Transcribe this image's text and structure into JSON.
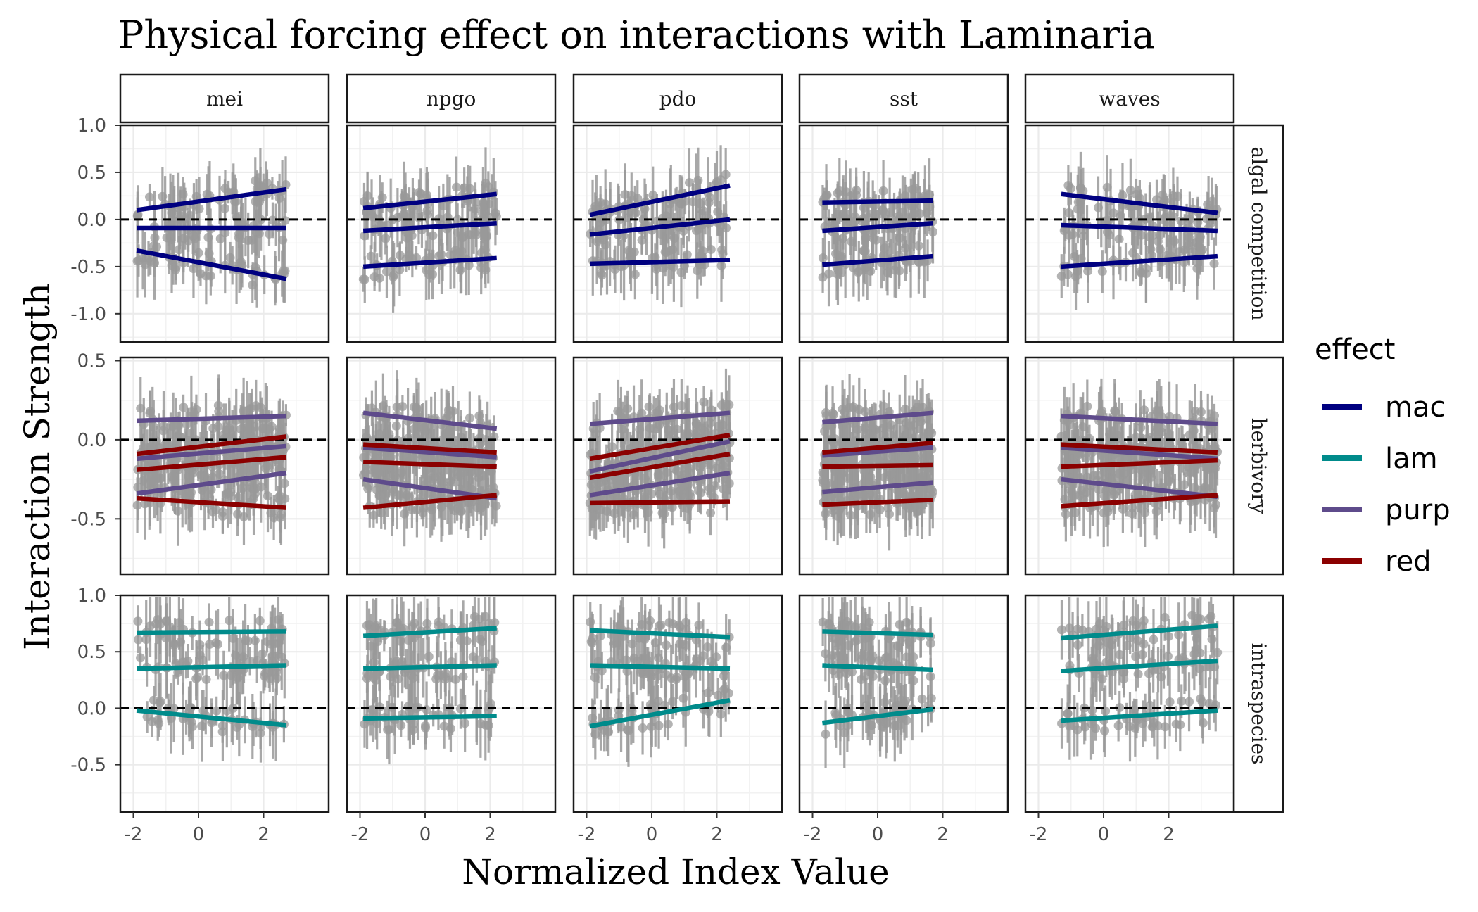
{
  "chart_data": {
    "type": "line",
    "title": "Physical forcing effect on interactions with Laminaria",
    "xlabel": "Normalized Index Value",
    "ylabel": "Interaction Strength",
    "columns": [
      "mei",
      "npgo",
      "pdo",
      "sst",
      "waves"
    ],
    "rows": [
      "algal competition",
      "herbivory",
      "intraspecies"
    ],
    "xlim": [
      -2.4,
      4.0
    ],
    "x_ticks": [
      -2,
      0,
      2
    ],
    "x_tick_labels": [
      "-2",
      "0",
      "2"
    ],
    "x_range_by_column": {
      "mei": [
        -1.9,
        2.7
      ],
      "npgo": [
        -1.9,
        2.2
      ],
      "pdo": [
        -1.9,
        2.4
      ],
      "sst": [
        -1.7,
        1.7
      ],
      "waves": [
        -1.3,
        3.5
      ]
    },
    "row_scales": [
      {
        "ylim": [
          -1.3,
          1.0
        ],
        "ticks": [
          1.0,
          0.5,
          0.0,
          -0.5,
          -1.0
        ],
        "tick_labels": [
          "1.0",
          "0.5",
          "0.0",
          "-0.5",
          "-1.0"
        ]
      },
      {
        "ylim": [
          -0.85,
          0.52
        ],
        "ticks": [
          0.5,
          0.0,
          -0.5
        ],
        "tick_labels": [
          "0.5",
          "0.0",
          "-0.5"
        ]
      },
      {
        "ylim": [
          -0.92,
          1.0
        ],
        "ticks": [
          1.0,
          0.5,
          0.0,
          -0.5
        ],
        "tick_labels": [
          "1.0",
          "0.5",
          "0.0",
          "-0.5"
        ]
      }
    ],
    "reference_line_y": 0,
    "grid": true,
    "legend": {
      "title": "effect",
      "position": "right",
      "entries": [
        {
          "name": "mac",
          "color": "#000080"
        },
        {
          "name": "lam",
          "color": "#008b8b"
        },
        {
          "name": "purp",
          "color": "#5e4b8b"
        },
        {
          "name": "red",
          "color": "#8b0000"
        }
      ]
    },
    "point_color": "#999999",
    "fit_lines": [
      {
        "row": "algal competition",
        "column": "mei",
        "effect": "mac",
        "y_start": 0.1,
        "y_end": 0.32
      },
      {
        "row": "algal competition",
        "column": "mei",
        "effect": "mac",
        "y_start": -0.09,
        "y_end": -0.09
      },
      {
        "row": "algal competition",
        "column": "mei",
        "effect": "mac",
        "y_start": -0.33,
        "y_end": -0.63
      },
      {
        "row": "algal competition",
        "column": "npgo",
        "effect": "mac",
        "y_start": 0.12,
        "y_end": 0.27
      },
      {
        "row": "algal competition",
        "column": "npgo",
        "effect": "mac",
        "y_start": -0.12,
        "y_end": -0.04
      },
      {
        "row": "algal competition",
        "column": "npgo",
        "effect": "mac",
        "y_start": -0.5,
        "y_end": -0.41
      },
      {
        "row": "algal competition",
        "column": "pdo",
        "effect": "mac",
        "y_start": 0.05,
        "y_end": 0.36
      },
      {
        "row": "algal competition",
        "column": "pdo",
        "effect": "mac",
        "y_start": -0.16,
        "y_end": 0.0
      },
      {
        "row": "algal competition",
        "column": "pdo",
        "effect": "mac",
        "y_start": -0.47,
        "y_end": -0.43
      },
      {
        "row": "algal competition",
        "column": "sst",
        "effect": "mac",
        "y_start": 0.18,
        "y_end": 0.2
      },
      {
        "row": "algal competition",
        "column": "sst",
        "effect": "mac",
        "y_start": -0.12,
        "y_end": -0.04
      },
      {
        "row": "algal competition",
        "column": "sst",
        "effect": "mac",
        "y_start": -0.48,
        "y_end": -0.39
      },
      {
        "row": "algal competition",
        "column": "waves",
        "effect": "mac",
        "y_start": 0.27,
        "y_end": 0.07
      },
      {
        "row": "algal competition",
        "column": "waves",
        "effect": "mac",
        "y_start": -0.06,
        "y_end": -0.12
      },
      {
        "row": "algal competition",
        "column": "waves",
        "effect": "mac",
        "y_start": -0.5,
        "y_end": -0.39
      },
      {
        "row": "herbivory",
        "column": "mei",
        "effect": "purp",
        "y_start": 0.12,
        "y_end": 0.15
      },
      {
        "row": "herbivory",
        "column": "mei",
        "effect": "purp",
        "y_start": -0.12,
        "y_end": -0.04
      },
      {
        "row": "herbivory",
        "column": "mei",
        "effect": "purp",
        "y_start": -0.34,
        "y_end": -0.21
      },
      {
        "row": "herbivory",
        "column": "mei",
        "effect": "red",
        "y_start": -0.09,
        "y_end": 0.02
      },
      {
        "row": "herbivory",
        "column": "mei",
        "effect": "red",
        "y_start": -0.19,
        "y_end": -0.11
      },
      {
        "row": "herbivory",
        "column": "mei",
        "effect": "red",
        "y_start": -0.37,
        "y_end": -0.43
      },
      {
        "row": "herbivory",
        "column": "npgo",
        "effect": "purp",
        "y_start": 0.17,
        "y_end": 0.07
      },
      {
        "row": "herbivory",
        "column": "npgo",
        "effect": "purp",
        "y_start": -0.05,
        "y_end": -0.11
      },
      {
        "row": "herbivory",
        "column": "npgo",
        "effect": "purp",
        "y_start": -0.25,
        "y_end": -0.37
      },
      {
        "row": "herbivory",
        "column": "npgo",
        "effect": "red",
        "y_start": -0.03,
        "y_end": -0.08
      },
      {
        "row": "herbivory",
        "column": "npgo",
        "effect": "red",
        "y_start": -0.14,
        "y_end": -0.17
      },
      {
        "row": "herbivory",
        "column": "npgo",
        "effect": "red",
        "y_start": -0.43,
        "y_end": -0.35
      },
      {
        "row": "herbivory",
        "column": "pdo",
        "effect": "purp",
        "y_start": 0.1,
        "y_end": 0.17
      },
      {
        "row": "herbivory",
        "column": "pdo",
        "effect": "purp",
        "y_start": -0.2,
        "y_end": -0.01
      },
      {
        "row": "herbivory",
        "column": "pdo",
        "effect": "purp",
        "y_start": -0.35,
        "y_end": -0.21
      },
      {
        "row": "herbivory",
        "column": "pdo",
        "effect": "red",
        "y_start": -0.12,
        "y_end": 0.03
      },
      {
        "row": "herbivory",
        "column": "pdo",
        "effect": "red",
        "y_start": -0.24,
        "y_end": -0.09
      },
      {
        "row": "herbivory",
        "column": "pdo",
        "effect": "red",
        "y_start": -0.4,
        "y_end": -0.39
      },
      {
        "row": "herbivory",
        "column": "sst",
        "effect": "purp",
        "y_start": 0.11,
        "y_end": 0.17
      },
      {
        "row": "herbivory",
        "column": "sst",
        "effect": "purp",
        "y_start": -0.1,
        "y_end": -0.05
      },
      {
        "row": "herbivory",
        "column": "sst",
        "effect": "purp",
        "y_start": -0.33,
        "y_end": -0.27
      },
      {
        "row": "herbivory",
        "column": "sst",
        "effect": "red",
        "y_start": -0.08,
        "y_end": -0.02
      },
      {
        "row": "herbivory",
        "column": "sst",
        "effect": "red",
        "y_start": -0.17,
        "y_end": -0.16
      },
      {
        "row": "herbivory",
        "column": "sst",
        "effect": "red",
        "y_start": -0.41,
        "y_end": -0.38
      },
      {
        "row": "herbivory",
        "column": "waves",
        "effect": "purp",
        "y_start": 0.15,
        "y_end": 0.1
      },
      {
        "row": "herbivory",
        "column": "waves",
        "effect": "purp",
        "y_start": -0.05,
        "y_end": -0.12
      },
      {
        "row": "herbivory",
        "column": "waves",
        "effect": "purp",
        "y_start": -0.25,
        "y_end": -0.36
      },
      {
        "row": "herbivory",
        "column": "waves",
        "effect": "red",
        "y_start": -0.03,
        "y_end": -0.08
      },
      {
        "row": "herbivory",
        "column": "waves",
        "effect": "red",
        "y_start": -0.17,
        "y_end": -0.13
      },
      {
        "row": "herbivory",
        "column": "waves",
        "effect": "red",
        "y_start": -0.42,
        "y_end": -0.35
      },
      {
        "row": "intraspecies",
        "column": "mei",
        "effect": "lam",
        "y_start": 0.67,
        "y_end": 0.68
      },
      {
        "row": "intraspecies",
        "column": "mei",
        "effect": "lam",
        "y_start": 0.35,
        "y_end": 0.38
      },
      {
        "row": "intraspecies",
        "column": "mei",
        "effect": "lam",
        "y_start": -0.02,
        "y_end": -0.15
      },
      {
        "row": "intraspecies",
        "column": "npgo",
        "effect": "lam",
        "y_start": 0.64,
        "y_end": 0.71
      },
      {
        "row": "intraspecies",
        "column": "npgo",
        "effect": "lam",
        "y_start": 0.35,
        "y_end": 0.38
      },
      {
        "row": "intraspecies",
        "column": "npgo",
        "effect": "lam",
        "y_start": -0.09,
        "y_end": -0.07
      },
      {
        "row": "intraspecies",
        "column": "pdo",
        "effect": "lam",
        "y_start": 0.69,
        "y_end": 0.63
      },
      {
        "row": "intraspecies",
        "column": "pdo",
        "effect": "lam",
        "y_start": 0.38,
        "y_end": 0.35
      },
      {
        "row": "intraspecies",
        "column": "pdo",
        "effect": "lam",
        "y_start": -0.16,
        "y_end": 0.07
      },
      {
        "row": "intraspecies",
        "column": "sst",
        "effect": "lam",
        "y_start": 0.68,
        "y_end": 0.65
      },
      {
        "row": "intraspecies",
        "column": "sst",
        "effect": "lam",
        "y_start": 0.38,
        "y_end": 0.34
      },
      {
        "row": "intraspecies",
        "column": "sst",
        "effect": "lam",
        "y_start": -0.13,
        "y_end": -0.01
      },
      {
        "row": "intraspecies",
        "column": "waves",
        "effect": "lam",
        "y_start": 0.62,
        "y_end": 0.73
      },
      {
        "row": "intraspecies",
        "column": "waves",
        "effect": "lam",
        "y_start": 0.33,
        "y_end": 0.42
      },
      {
        "row": "intraspecies",
        "column": "waves",
        "effect": "lam",
        "y_start": -0.11,
        "y_end": -0.02
      }
    ]
  }
}
